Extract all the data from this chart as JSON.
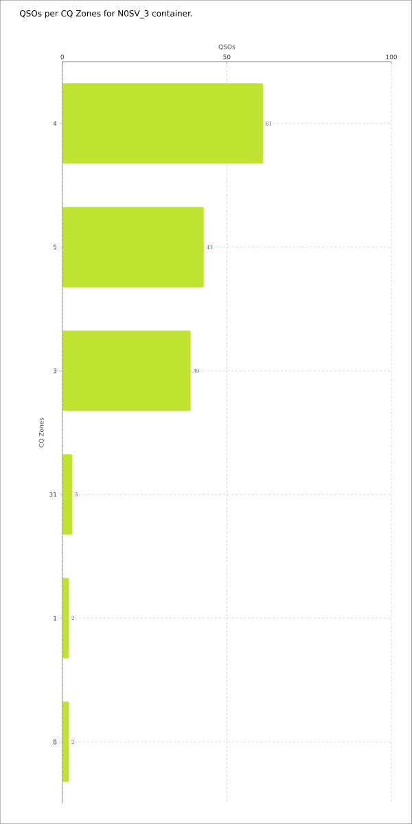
{
  "chart_data": {
    "type": "bar",
    "orientation": "horizontal",
    "title": "QSOs per CQ Zones for N0SV_3 container.",
    "xlabel": "QSOs",
    "ylabel": "CQ Zones",
    "categories": [
      "4",
      "5",
      "3",
      "31",
      "1",
      "8"
    ],
    "values": [
      61,
      43,
      39,
      3,
      2,
      2
    ],
    "color": "#bfe330",
    "xlim": [
      0,
      100
    ],
    "xticks": [
      0,
      50,
      100
    ],
    "grid": true,
    "data_labels": true
  }
}
